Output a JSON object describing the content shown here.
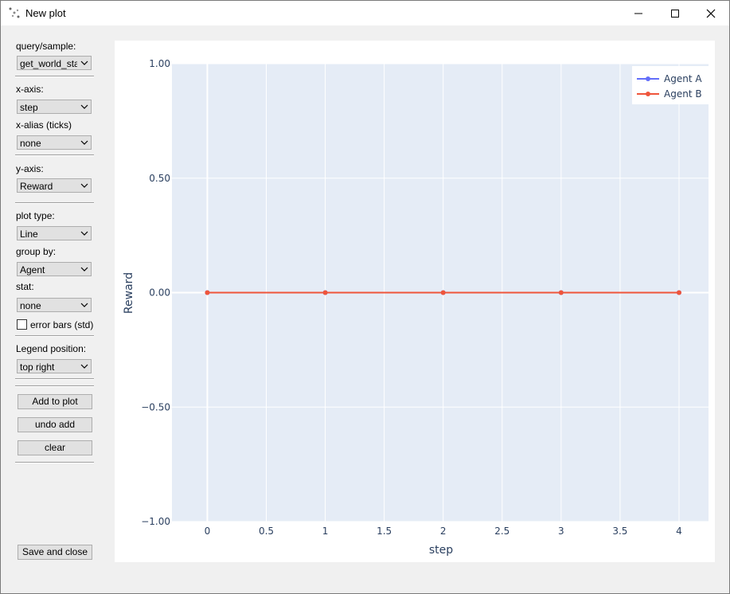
{
  "window": {
    "title": "New plot"
  },
  "controls": {
    "query_label": "query/sample:",
    "query_value": "get_world_stat",
    "xaxis_label": "x-axis:",
    "xaxis_value": "step",
    "xalias_label": "x-alias (ticks)",
    "xalias_value": "none",
    "yaxis_label": "y-axis:",
    "yaxis_value": "Reward",
    "plottype_label": "plot type:",
    "plottype_value": "Line",
    "groupby_label": "group by:",
    "groupby_value": "Agent",
    "stat_label": "stat:",
    "stat_value": "none",
    "errorbars_label": "error bars (std)",
    "errorbars_checked": false,
    "legendpos_label": "Legend position:",
    "legendpos_value": "top right",
    "add_button": "Add to plot",
    "undo_button": "undo add",
    "clear_button": "clear",
    "save_button": "Save and close"
  },
  "chart_data": {
    "type": "line",
    "x": [
      0,
      1,
      2,
      3,
      4
    ],
    "series": [
      {
        "name": "Agent A",
        "values": [
          0,
          0,
          0,
          0,
          0
        ],
        "color": "#636efa"
      },
      {
        "name": "Agent B",
        "values": [
          0,
          0,
          0,
          0,
          0
        ],
        "color": "#ef553b"
      }
    ],
    "xlabel": "step",
    "ylabel": "Reward",
    "xlim": [
      -0.3,
      4.25
    ],
    "ylim": [
      -1,
      1
    ],
    "xticks": [
      0,
      0.5,
      1,
      1.5,
      2,
      2.5,
      3,
      3.5,
      4
    ],
    "xtick_labels": [
      "0",
      "0.5",
      "1",
      "1.5",
      "2",
      "2.5",
      "3",
      "3.5",
      "4"
    ],
    "yticks": [
      1,
      0.5,
      0,
      -0.5,
      -1
    ],
    "ytick_labels": [
      "1.00",
      "0.50",
      "0.00",
      "−0.50",
      "−1.00"
    ],
    "grid": true,
    "legend_position": "top-right",
    "plot_bg": "#e5ecf6"
  }
}
